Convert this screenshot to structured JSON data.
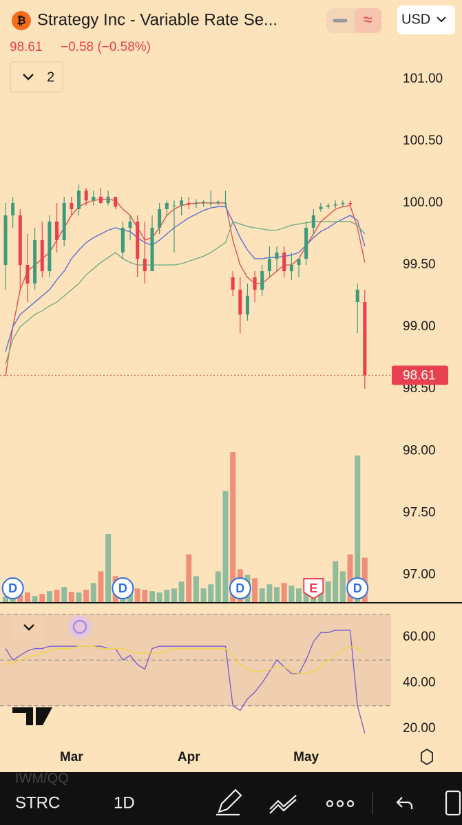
{
  "header": {
    "title": "Strategy Inc - Variable Rate Se...",
    "price": "98.61",
    "change": "−0.58 (−0.58%)",
    "currency": "USD",
    "indicator_count": "2"
  },
  "chart_data": [
    {
      "type": "candlestick",
      "categories": [
        null,
        null,
        null,
        null,
        null,
        null,
        null,
        null,
        null,
        "Mar",
        null,
        null,
        null,
        null,
        null,
        null,
        null,
        null,
        null,
        null,
        null,
        null,
        null,
        null,
        null,
        "Apr",
        null,
        null,
        null,
        null,
        null,
        null,
        null,
        null,
        null,
        null,
        null,
        null,
        null,
        null,
        null,
        "May",
        null,
        null,
        null,
        null,
        null,
        null,
        null,
        null
      ],
      "open": [
        99.5,
        99.9,
        99.9,
        99.5,
        99.35,
        99.7,
        99.45,
        99.85,
        99.7,
        100.0,
        99.95,
        100.1,
        100.02,
        100.05,
        100.0,
        100.05,
        99.6,
        99.8,
        99.85,
        99.55,
        99.45,
        99.8,
        99.95,
        99.98,
        99.98,
        100.0,
        99.99,
        100.0,
        100.0,
        100.0,
        100.0,
        99.4,
        99.3,
        99.1,
        99.4,
        99.3,
        99.45,
        99.55,
        99.6,
        99.45,
        99.5,
        99.55,
        99.8,
        99.95,
        99.97,
        99.98,
        99.99,
        100.0,
        99.2,
        99.2
      ],
      "high": [
        100.0,
        100.05,
        99.95,
        99.75,
        99.8,
        99.85,
        99.9,
        100.0,
        100.05,
        100.05,
        100.15,
        100.12,
        100.1,
        100.12,
        100.1,
        100.05,
        99.85,
        99.9,
        99.9,
        99.85,
        99.9,
        100.0,
        100.02,
        100.02,
        100.05,
        100.05,
        100.03,
        100.02,
        100.1,
        100.02,
        100.1,
        99.45,
        99.4,
        99.35,
        99.45,
        99.5,
        99.65,
        99.65,
        99.65,
        99.6,
        99.55,
        99.85,
        99.95,
        100.0,
        100.0,
        100.02,
        100.02,
        100.02,
        99.35,
        99.3
      ],
      "low": [
        99.3,
        99.8,
        99.3,
        99.2,
        99.3,
        99.4,
        99.4,
        99.6,
        99.65,
        99.9,
        99.9,
        99.98,
        99.98,
        99.99,
        99.98,
        99.95,
        99.55,
        99.7,
        99.4,
        99.35,
        99.45,
        99.75,
        99.9,
        99.6,
        99.9,
        99.95,
        99.96,
        99.97,
        99.97,
        99.98,
        99.97,
        99.25,
        98.95,
        99.05,
        99.2,
        99.25,
        99.4,
        99.45,
        99.4,
        99.38,
        99.4,
        99.5,
        99.75,
        99.93,
        99.95,
        99.96,
        99.97,
        99.98,
        98.95,
        98.5
      ],
      "close": [
        99.9,
        100.0,
        99.5,
        99.35,
        99.7,
        99.45,
        99.85,
        99.7,
        100.0,
        99.95,
        100.1,
        100.02,
        100.05,
        100.0,
        100.05,
        99.97,
        99.8,
        99.85,
        99.55,
        99.45,
        99.8,
        99.95,
        100.0,
        99.98,
        100.02,
        99.99,
        100.0,
        100.01,
        100.0,
        100.01,
        100.0,
        99.3,
        99.1,
        99.25,
        99.3,
        99.45,
        99.55,
        99.6,
        99.45,
        99.5,
        99.55,
        99.8,
        99.9,
        99.97,
        99.98,
        99.99,
        100.0,
        99.99,
        99.3,
        98.61
      ],
      "up_color": "#3d9a7c",
      "down_color": "#e8404e",
      "series": [
        {
          "color": "#e0504f",
          "values": [
            98.6,
            99.0,
            99.3,
            99.45,
            99.5,
            99.55,
            99.6,
            99.7,
            99.8,
            99.9,
            99.97,
            100.0,
            100.02,
            100.03,
            100.03,
            100.02,
            99.95,
            99.9,
            99.8,
            99.7,
            99.72,
            99.8,
            99.9,
            99.95,
            99.98,
            99.99,
            100.0,
            100.0,
            100.0,
            100.0,
            100.0,
            99.7,
            99.5,
            99.4,
            99.35,
            99.35,
            99.4,
            99.45,
            99.5,
            99.5,
            99.55,
            99.65,
            99.75,
            99.85,
            99.9,
            99.95,
            99.97,
            99.98,
            99.8,
            99.52
          ]
        },
        {
          "color": "#5a6fd6",
          "values": [
            98.8,
            99.0,
            99.1,
            99.15,
            99.2,
            99.25,
            99.3,
            99.38,
            99.45,
            99.55,
            99.62,
            99.68,
            99.72,
            99.75,
            99.78,
            99.8,
            99.78,
            99.77,
            99.72,
            99.68,
            99.66,
            99.7,
            99.75,
            99.8,
            99.84,
            99.88,
            99.91,
            99.94,
            99.96,
            99.97,
            99.97,
            99.85,
            99.72,
            99.62,
            99.55,
            99.55,
            99.56,
            99.56,
            99.57,
            99.58,
            99.6,
            99.66,
            99.72,
            99.77,
            99.8,
            99.84,
            99.87,
            99.9,
            99.86,
            99.65
          ]
        },
        {
          "color": "#6fae86",
          "values": [
            98.7,
            98.9,
            99.0,
            99.05,
            99.1,
            99.13,
            99.17,
            99.2,
            99.25,
            99.3,
            99.35,
            99.42,
            99.47,
            99.52,
            99.56,
            99.6,
            99.55,
            99.52,
            99.5,
            99.5,
            99.5,
            99.5,
            99.5,
            99.5,
            99.51,
            99.53,
            99.55,
            99.57,
            99.6,
            99.64,
            99.68,
            99.85,
            99.83,
            99.81,
            99.8,
            99.79,
            99.78,
            99.78,
            99.8,
            99.82,
            99.83,
            99.84,
            99.85,
            99.85,
            99.85,
            99.85,
            99.85,
            99.85,
            99.82,
            99.75
          ]
        }
      ],
      "volume": [
        8,
        12,
        10,
        14,
        9,
        12,
        16,
        18,
        22,
        15,
        14,
        18,
        28,
        45,
        100,
        38,
        14,
        25,
        20,
        18,
        16,
        14,
        18,
        20,
        30,
        70,
        38,
        20,
        26,
        45,
        163,
        220,
        48,
        40,
        35,
        20,
        26,
        22,
        28,
        24,
        20,
        30,
        20,
        25,
        30,
        60,
        45,
        70,
        215,
        65
      ],
      "volume_up_color": "#8fbc9c",
      "volume_down_color": "#f0907a",
      "ylim": [
        96.78,
        101.36
      ],
      "yticks": [
        {
          "value": 101,
          "label": "101.00"
        },
        {
          "value": 100.5,
          "label": "100.50"
        },
        {
          "value": 100,
          "label": "100.00"
        },
        {
          "value": 99.5,
          "label": "99.50"
        },
        {
          "value": 99,
          "label": "99.00"
        },
        {
          "value": 98.5,
          "label": "98.50"
        },
        {
          "value": 98,
          "label": "98.00"
        },
        {
          "value": 97.5,
          "label": "97.50"
        },
        {
          "value": 97,
          "label": "97.00"
        }
      ],
      "last_price": 98.61,
      "events": [
        {
          "index": 1,
          "label": "D"
        },
        {
          "index": 16,
          "label": "D"
        },
        {
          "index": 32,
          "label": "D"
        },
        {
          "index": 42,
          "label": "E"
        },
        {
          "index": 48,
          "label": "D"
        }
      ]
    },
    {
      "type": "line",
      "series": [
        {
          "color": "#7b5fd0",
          "values": [
            55,
            50,
            52,
            54,
            55,
            55,
            56,
            56,
            56,
            56,
            56,
            56,
            56,
            56,
            55,
            55,
            50,
            52,
            48,
            46,
            55,
            56,
            56,
            56,
            56,
            56,
            56,
            56,
            56,
            56,
            56,
            30,
            28,
            33,
            36,
            40,
            45,
            50,
            47,
            44,
            44,
            50,
            58,
            62,
            62,
            63,
            63,
            63,
            30,
            18
          ]
        },
        {
          "color": "#f2d44a",
          "values": [
            48,
            49,
            50,
            51,
            52,
            53,
            54,
            55,
            55,
            55,
            56,
            56,
            56,
            55,
            55,
            55,
            55,
            54,
            53,
            53,
            53,
            53,
            54,
            55,
            55,
            55,
            55,
            55,
            55,
            55,
            55,
            52,
            48,
            46,
            45,
            45,
            46,
            47,
            47,
            45,
            44,
            44,
            45,
            47,
            50,
            52,
            54,
            56,
            55,
            53
          ]
        }
      ],
      "ylim": [
        13.7,
        74.4
      ],
      "yticks": [
        {
          "value": 60,
          "label": "60.00"
        },
        {
          "value": 40,
          "label": "40.00"
        },
        {
          "value": 20,
          "label": "20.00"
        }
      ],
      "hlines": [
        70,
        50,
        30
      ]
    }
  ],
  "toolbar": {
    "symbol": "STRC",
    "interval": "1D",
    "watchlist": "IWM/QQ"
  }
}
